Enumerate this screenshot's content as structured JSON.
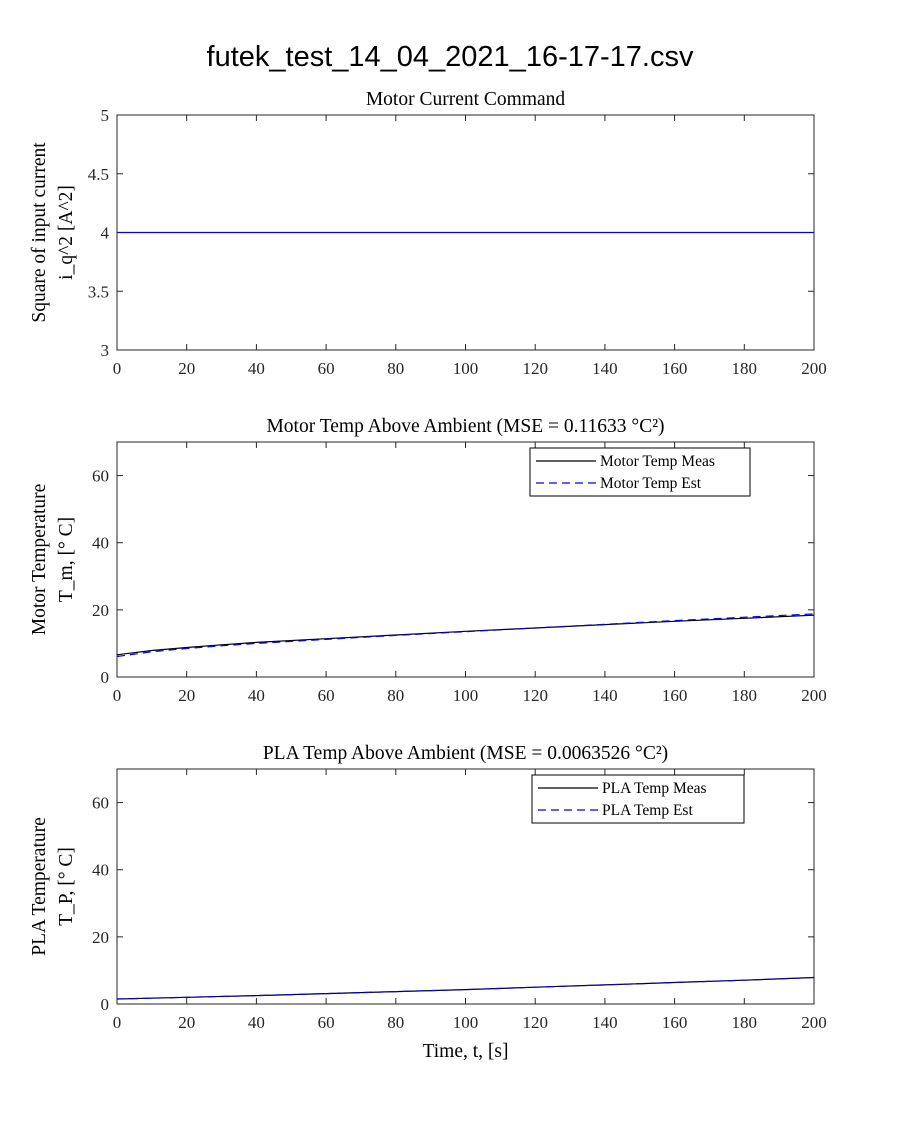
{
  "suptitle": "futek_test_14_04_2021_16-17-17.csv",
  "colors": {
    "meas": "#000000",
    "est": "#0000ff",
    "cmd": "#0000ff",
    "axis": "#262626"
  },
  "chart_data": [
    {
      "type": "line",
      "title": "Motor Current Command",
      "ylabel_line1": "Square of input current",
      "ylabel_line2": "i_q^2 [A^2]",
      "xlabel": "",
      "xlim": [
        0,
        200
      ],
      "ylim": [
        3,
        5
      ],
      "xticks": [
        0,
        20,
        40,
        60,
        80,
        100,
        120,
        140,
        160,
        180,
        200
      ],
      "yticks": [
        3,
        3.5,
        4,
        4.5,
        5
      ],
      "legend": null,
      "series": [
        {
          "style": "solid",
          "color": "#0000ff",
          "x": [
            0,
            200
          ],
          "y": [
            4,
            4
          ]
        }
      ]
    },
    {
      "type": "line",
      "title": "Motor Temp Above Ambient (MSE = 0.11633 °C²)",
      "ylabel_line1": "Motor Temperature",
      "ylabel_line2": "T_m, [° C]",
      "xlabel": "",
      "xlim": [
        0,
        200
      ],
      "ylim": [
        0,
        70
      ],
      "xticks": [
        0,
        20,
        40,
        60,
        80,
        100,
        120,
        140,
        160,
        180,
        200
      ],
      "yticks": [
        0,
        20,
        40,
        60
      ],
      "legend": "top-right",
      "series": [
        {
          "name": "Motor Temp Meas",
          "style": "solid",
          "color": "#000000",
          "x": [
            0,
            10,
            20,
            30,
            40,
            60,
            80,
            100,
            120,
            140,
            160,
            180,
            200
          ],
          "y": [
            6.6,
            7.9,
            8.8,
            9.6,
            10.3,
            11.4,
            12.5,
            13.6,
            14.6,
            15.6,
            16.6,
            17.5,
            18.4
          ]
        },
        {
          "name": "Motor Temp Est",
          "style": "dashed",
          "color": "#0000ff",
          "x": [
            0,
            10,
            20,
            30,
            40,
            60,
            80,
            100,
            120,
            140,
            160,
            180,
            200
          ],
          "y": [
            6.1,
            7.5,
            8.5,
            9.3,
            10.0,
            11.2,
            12.4,
            13.5,
            14.6,
            15.7,
            16.8,
            17.8,
            18.8
          ]
        }
      ]
    },
    {
      "type": "line",
      "title": "PLA Temp Above Ambient (MSE = 0.0063526 °C²)",
      "ylabel_line1": "PLA Temperature",
      "ylabel_line2": "T_P, [° C]",
      "xlabel": "Time, t, [s]",
      "xlim": [
        0,
        200
      ],
      "ylim": [
        0,
        70
      ],
      "xticks": [
        0,
        20,
        40,
        60,
        80,
        100,
        120,
        140,
        160,
        180,
        200
      ],
      "yticks": [
        0,
        20,
        40,
        60
      ],
      "legend": "top-right",
      "series": [
        {
          "name": "PLA Temp Meas",
          "style": "solid",
          "color": "#000000",
          "x": [
            0,
            20,
            40,
            60,
            80,
            100,
            120,
            140,
            160,
            180,
            200
          ],
          "y": [
            1.5,
            2.0,
            2.5,
            3.1,
            3.7,
            4.3,
            5.0,
            5.7,
            6.4,
            7.1,
            7.9
          ]
        },
        {
          "name": "PLA Temp Est",
          "style": "dashed",
          "color": "#0000ff",
          "x": [
            0,
            20,
            40,
            60,
            80,
            100,
            120,
            140,
            160,
            180,
            200
          ],
          "y": [
            1.5,
            2.0,
            2.5,
            3.1,
            3.7,
            4.3,
            5.0,
            5.7,
            6.4,
            7.1,
            7.9
          ]
        }
      ]
    }
  ]
}
